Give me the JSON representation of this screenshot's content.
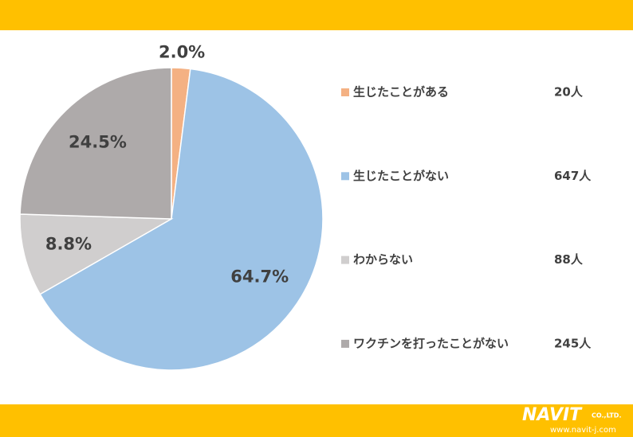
{
  "chart_data": {
    "type": "pie",
    "categories": [
      "生じたことがある",
      "生じたことがない",
      "わからない",
      "ワクチンを打ったことがない"
    ],
    "values": [
      2.0,
      64.7,
      8.8,
      24.5
    ],
    "value_labels": [
      "2.0%",
      "64.7%",
      "8.8%",
      "24.5%"
    ],
    "colors": [
      "#f4b183",
      "#9dc3e6",
      "#d0cece",
      "#aeaaaa"
    ],
    "counts": [
      "20人",
      "647人",
      "88人",
      "245人"
    ]
  },
  "footer": {
    "logo": "NAVIT",
    "company": "CO.,LTD.",
    "url": "www.navit-j.com"
  }
}
